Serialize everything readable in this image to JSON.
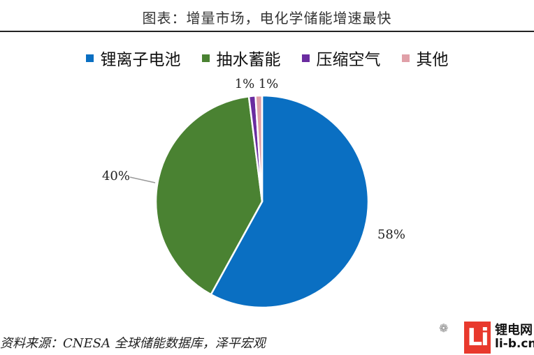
{
  "header": {
    "title": "图表：增量市场，电化学储能增速最快"
  },
  "chart_data": {
    "type": "pie",
    "title": "图表：增量市场，电化学储能增速最快",
    "legend_position": "top",
    "slices": [
      {
        "name": "锂离子电池",
        "value": 58,
        "label": "58%",
        "color": "#0a6fc2"
      },
      {
        "name": "抽水蓄能",
        "value": 40,
        "label": "40%",
        "color": "#4a8232"
      },
      {
        "name": "压缩空气",
        "value": 1,
        "label": "1%",
        "color": "#6a2ca0"
      },
      {
        "name": "其他",
        "value": 1,
        "label": "1%",
        "color": "#e0a0a8"
      }
    ]
  },
  "footer": {
    "source": "资料来源：CNESA 全球储能数据库，泽平宏观"
  },
  "watermark": {
    "logo": "Li",
    "brand_top": "锂电网",
    "brand_bottom": "li-b.cn"
  }
}
